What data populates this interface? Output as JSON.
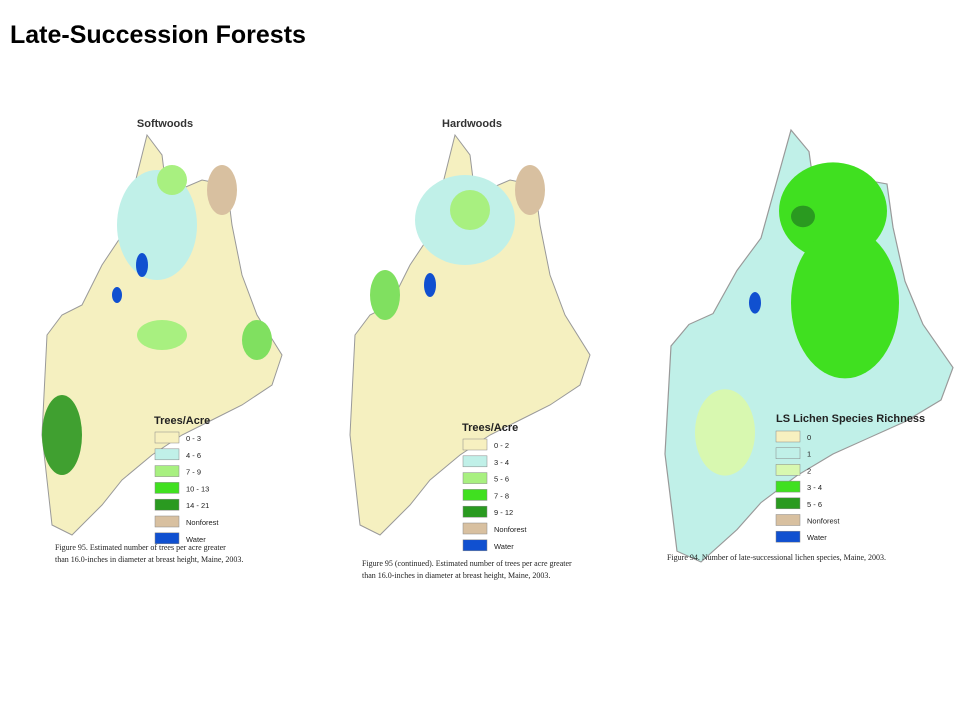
{
  "header": {
    "title": "Late-Succession Forests"
  },
  "panels": [
    {
      "map_title": "Softwoods",
      "legend_title": "Trees/Acre",
      "legend": [
        {
          "label": "0 - 3",
          "color": "#f7f0c0"
        },
        {
          "label": "4 - 6",
          "color": "#c0f0e8"
        },
        {
          "label": "7 - 9",
          "color": "#a8f080"
        },
        {
          "label": "10 - 13",
          "color": "#40e020"
        },
        {
          "label": "14 - 21",
          "color": "#2a9a20"
        },
        {
          "label": "Nonforest",
          "color": "#d8c0a0"
        },
        {
          "label": "Water",
          "color": "#1050d0"
        }
      ],
      "caption": [
        "Figure 95.  Estimated number of trees per acre greater",
        "than 16.0-inches in diameter at breast height, Maine, 2003."
      ]
    },
    {
      "map_title": "Hardwoods",
      "legend_title": "Trees/Acre",
      "legend": [
        {
          "label": "0 - 2",
          "color": "#f7f0c0"
        },
        {
          "label": "3 - 4",
          "color": "#c0f0e8"
        },
        {
          "label": "5 - 6",
          "color": "#a8f080"
        },
        {
          "label": "7 - 8",
          "color": "#40e020"
        },
        {
          "label": "9 - 12",
          "color": "#2a9a20"
        },
        {
          "label": "Nonforest",
          "color": "#d8c0a0"
        },
        {
          "label": "Water",
          "color": "#1050d0"
        }
      ],
      "caption": [
        "Figure 95 (continued).  Estimated number of trees per acre greater",
        "than 16.0-inches in diameter at breast height, Maine, 2003."
      ]
    },
    {
      "map_title": null,
      "legend_title": "LS Lichen Species Richness",
      "legend": [
        {
          "label": "0",
          "color": "#f7f0c0"
        },
        {
          "label": "1",
          "color": "#c0f0e8"
        },
        {
          "label": "2",
          "color": "#d8f8b0"
        },
        {
          "label": "3 - 4",
          "color": "#40e020"
        },
        {
          "label": "5 - 6",
          "color": "#2a9a20"
        },
        {
          "label": "Nonforest",
          "color": "#d8c0a0"
        },
        {
          "label": "Water",
          "color": "#1050d0"
        }
      ],
      "caption": [
        "Figure 94.  Number of late-successional lichen species, Maine, 2003."
      ]
    }
  ]
}
